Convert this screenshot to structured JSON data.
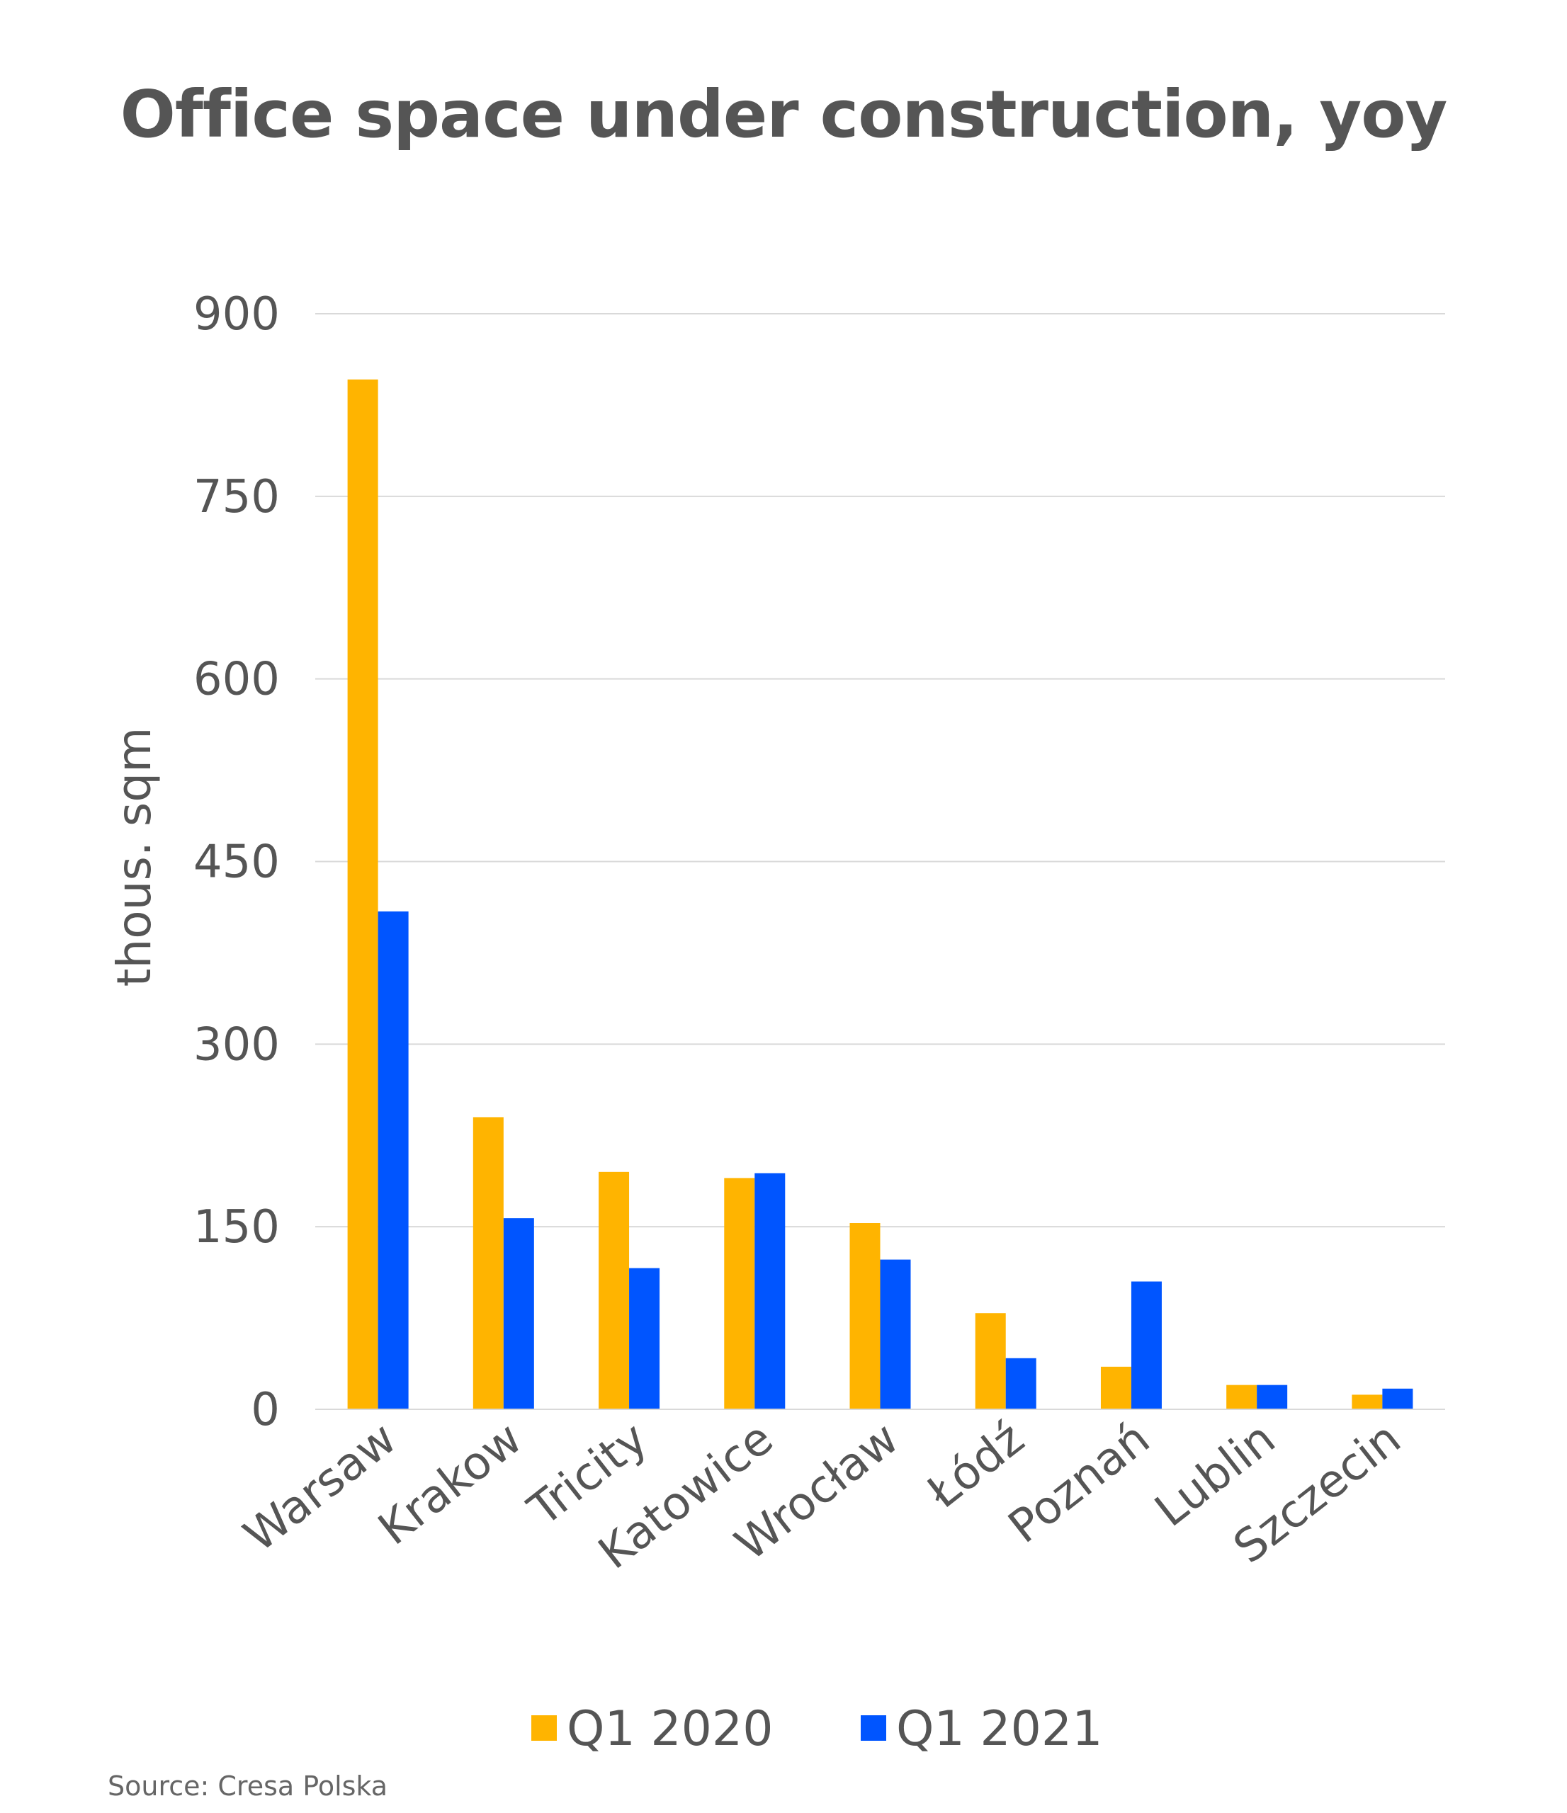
{
  "source": "Source: Cresa Polska",
  "chart_data": {
    "type": "bar",
    "title": "Office space under construction, yoy",
    "xlabel": "",
    "ylabel": "thous. sqm",
    "ylim": [
      0,
      900
    ],
    "yticks": [
      "0",
      "150",
      "300",
      "450",
      "600",
      "750",
      "900"
    ],
    "grid": true,
    "legend": "bottom",
    "categories": [
      "Warsaw",
      "Krakow",
      "Tricity",
      "Katowice",
      "Wrocław",
      "Łódź",
      "Poznań",
      "Lublin",
      "Szczecin"
    ],
    "series": [
      {
        "name": "Q1 2020",
        "color": "#FFB400",
        "values": [
          846,
          240,
          195,
          190,
          153,
          79,
          35,
          20,
          12
        ]
      },
      {
        "name": "Q1 2021",
        "color": "#0055FF",
        "values": [
          409,
          157,
          116,
          194,
          123,
          42,
          105,
          20,
          17
        ]
      }
    ],
    "colors": {
      "text": "#555555",
      "grid": "#D9D9D9"
    }
  }
}
